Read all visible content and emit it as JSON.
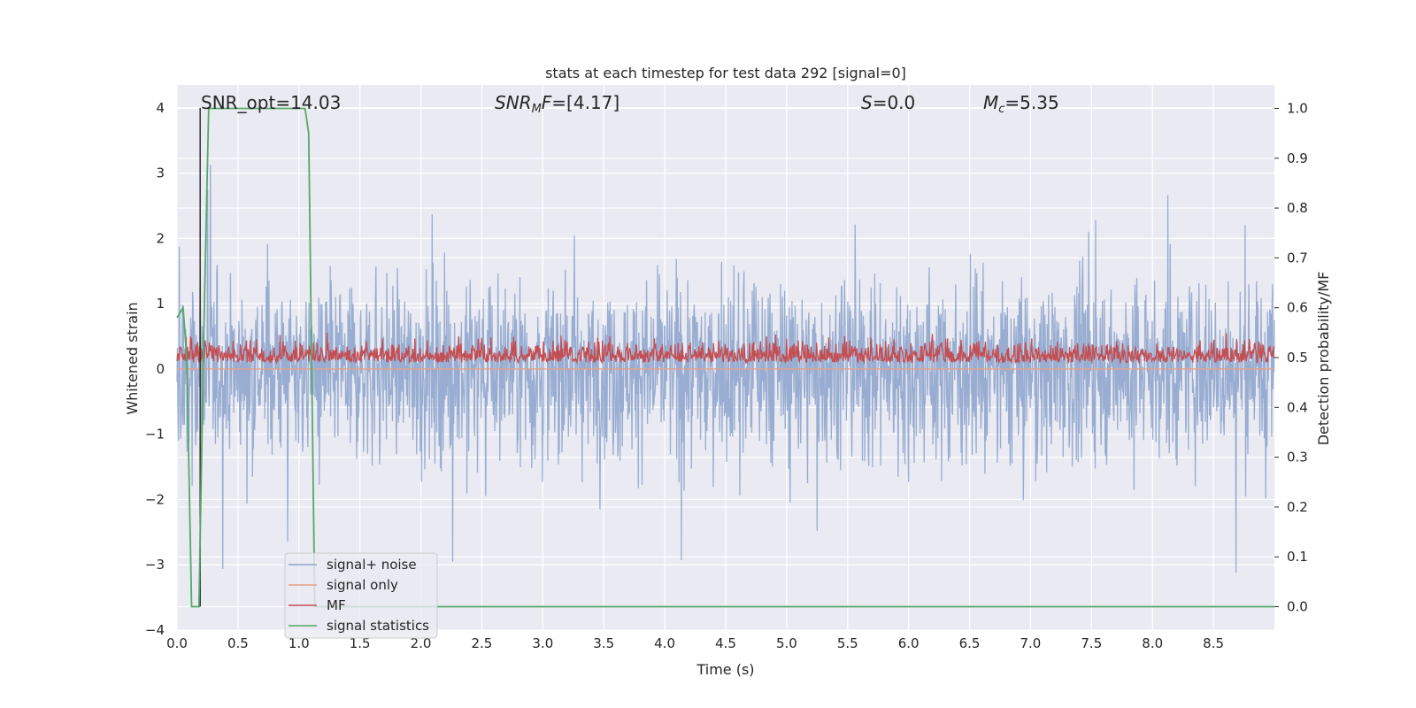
{
  "chart_data": {
    "type": "line",
    "title": "stats at each timestep for test data 292 [signal=0]",
    "xlabel": "Time (s)",
    "ylabel": "Whitened strain",
    "y2label": "Detection probability/MF",
    "xlim": [
      0.0,
      9.0
    ],
    "ylim": [
      -4.0,
      4.35
    ],
    "y2lim": [
      -0.047,
      1.047
    ],
    "xticks": [
      "0.0",
      "0.5",
      "1.0",
      "1.5",
      "2.0",
      "2.5",
      "3.0",
      "3.5",
      "4.0",
      "4.5",
      "5.0",
      "5.5",
      "6.0",
      "6.5",
      "7.0",
      "7.5",
      "8.0",
      "8.5"
    ],
    "yticks": [
      "4",
      "3",
      "2",
      "1",
      "0",
      "−1",
      "−2",
      "−3",
      "−4"
    ],
    "y2ticks": [
      "1.0",
      "0.9",
      "0.8",
      "0.7",
      "0.6",
      "0.5",
      "0.4",
      "0.3",
      "0.2",
      "0.1",
      "0.0"
    ],
    "grid": true,
    "legend_position": "lower-left",
    "annotations": {
      "snr_opt": "SNR_opt=14.03",
      "snr_mf_main": "SNR",
      "snr_mf_sub": "M",
      "snr_mf_italic": "F",
      "snr_mf_value": "=[4.17]",
      "s_italic": "S",
      "s_value": "=0.0",
      "mc_italic": "M",
      "mc_sub": "c",
      "mc_value": "=5.35"
    },
    "series": [
      {
        "name": "signal+ noise",
        "color": "#8fa6cd",
        "axis": "left",
        "description_range": [
          -3.6,
          3.9
        ]
      },
      {
        "name": "signal only",
        "color": "#e8a086",
        "axis": "left",
        "values_constant": 0.0
      },
      {
        "name": "MF",
        "color": "#c44e52",
        "axis": "right",
        "range": [
          0.49,
          0.6
        ]
      },
      {
        "name": "signal statistics",
        "color": "#55a868",
        "axis": "right",
        "x": [
          0.0,
          0.05,
          0.08,
          0.12,
          0.18,
          0.22,
          0.26,
          1.05,
          1.08,
          1.13,
          1.18,
          9.0
        ],
        "y": [
          0.58,
          0.6,
          0.5,
          0.0,
          0.0,
          0.55,
          1.0,
          1.0,
          0.95,
          0.0,
          0.0,
          0.0
        ]
      }
    ],
    "vline": {
      "x": 0.19,
      "color": "#333333"
    }
  }
}
